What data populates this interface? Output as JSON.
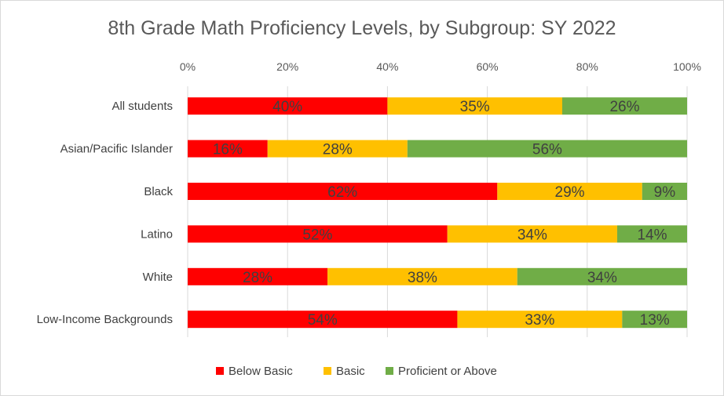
{
  "chart_data": {
    "type": "bar",
    "orientation": "horizontal",
    "stacked": true,
    "title": "8th Grade Math Proficiency Levels, by Subgroup: SY 2022",
    "xlabel": "",
    "ylabel": "",
    "xlim": [
      0,
      100
    ],
    "x_ticks": [
      "0%",
      "20%",
      "40%",
      "60%",
      "80%",
      "100%"
    ],
    "x_tick_values": [
      0,
      20,
      40,
      60,
      80,
      100
    ],
    "grid": true,
    "legend_position": "bottom",
    "categories": [
      "All students",
      "Asian/Pacific Islander",
      "Black",
      "Latino",
      "White",
      "Low-Income Backgrounds"
    ],
    "series": [
      {
        "name": "Below Basic",
        "color": "#ff0000",
        "values": [
          40,
          16,
          62,
          52,
          28,
          54
        ],
        "labels": [
          "40%",
          "16%",
          "62%",
          "52%",
          "28%",
          "54%"
        ]
      },
      {
        "name": "Basic",
        "color": "#ffc000",
        "values": [
          35,
          28,
          29,
          34,
          38,
          33
        ],
        "labels": [
          "35%",
          "28%",
          "29%",
          "34%",
          "38%",
          "33%"
        ]
      },
      {
        "name": "Proficient or Above",
        "color": "#70ad47",
        "values": [
          26,
          56,
          9,
          14,
          34,
          13
        ],
        "labels": [
          "26%",
          "56%",
          "9%",
          "14%",
          "34%",
          "13%"
        ]
      }
    ]
  }
}
